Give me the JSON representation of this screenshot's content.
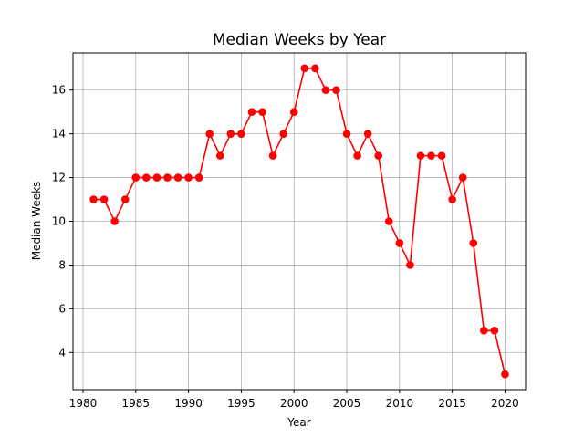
{
  "chart_data": {
    "type": "line",
    "title": "Median Weeks by Year",
    "xlabel": "Year",
    "ylabel": "Median Weeks",
    "xlim": [
      1979.05,
      2021.95
    ],
    "ylim": [
      2.3,
      17.7
    ],
    "xticks": [
      1980,
      1985,
      1990,
      1995,
      2000,
      2005,
      2010,
      2015,
      2020
    ],
    "yticks": [
      4,
      6,
      8,
      10,
      12,
      14,
      16
    ],
    "grid": true,
    "series": [
      {
        "color": "#ff0000",
        "marker": "circle",
        "x": [
          1981,
          1982,
          1983,
          1984,
          1985,
          1986,
          1987,
          1988,
          1989,
          1990,
          1991,
          1992,
          1993,
          1994,
          1995,
          1996,
          1997,
          1998,
          1999,
          2000,
          2001,
          2002,
          2003,
          2004,
          2005,
          2006,
          2007,
          2008,
          2009,
          2010,
          2011,
          2012,
          2013,
          2014,
          2015,
          2016,
          2017,
          2018,
          2019,
          2020
        ],
        "values": [
          11,
          11,
          10,
          11,
          12,
          12,
          12,
          12,
          12,
          12,
          12,
          14,
          13,
          14,
          14,
          15,
          15,
          13,
          14,
          15,
          17,
          17,
          16,
          16,
          14,
          13,
          14,
          13,
          10,
          9,
          8,
          13,
          13,
          13,
          11,
          12,
          9,
          5,
          5,
          3
        ]
      }
    ]
  }
}
